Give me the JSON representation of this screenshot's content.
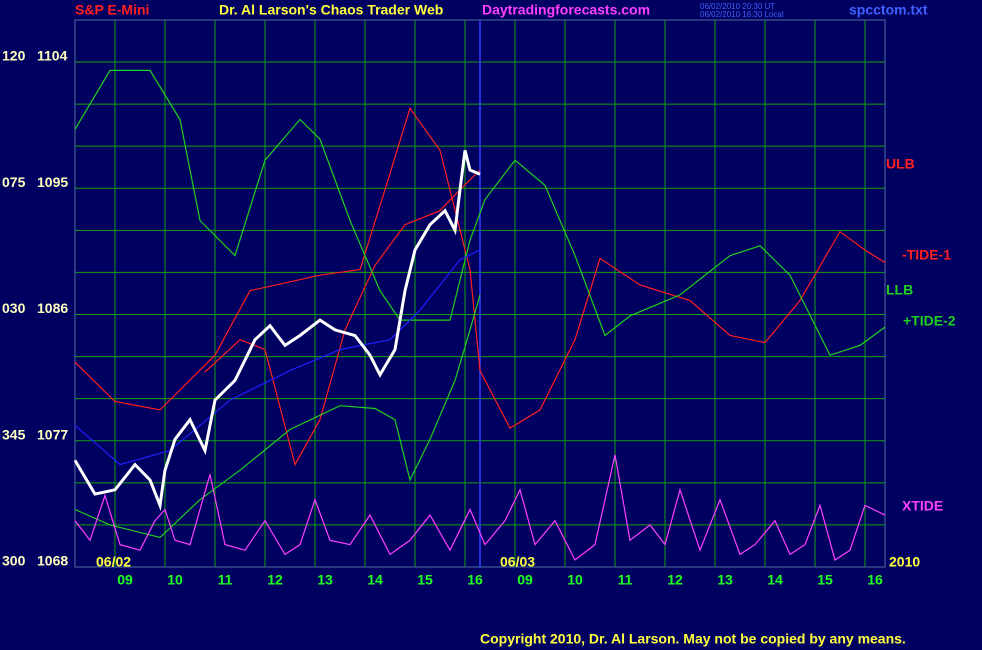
{
  "chart_data": {
    "type": "line",
    "header": {
      "symbol": "S&P E-Mini",
      "title": "Dr. Al Larson's Chaos Trader Web",
      "site": "Daytradingforecasts.com",
      "time_ut": "06/02/2010 20:30 UT",
      "time_local": "06/02/2010 16:30 Local",
      "file": "spcctom.txt"
    },
    "copyright": "Copyright 2010, Dr. Al Larson. May not be copied by any means.",
    "date_labels": [
      "06/02",
      "06/03",
      "2010"
    ],
    "xlim": [
      0,
      16.2
    ],
    "ylim": [
      1068,
      1104
    ],
    "yticks": [
      1068,
      1077,
      1086,
      1095,
      1104
    ],
    "angle_labels": [
      "300",
      "345",
      "030",
      "075",
      "120"
    ],
    "minor_yticks": [
      1071,
      1074,
      1080,
      1083,
      1089,
      1092,
      1098,
      1101
    ],
    "xticks": [
      {
        "value": 1,
        "label": "09"
      },
      {
        "value": 2,
        "label": "10"
      },
      {
        "value": 3,
        "label": "11"
      },
      {
        "value": 4,
        "label": "12"
      },
      {
        "value": 5,
        "label": "13"
      },
      {
        "value": 6,
        "label": "14"
      },
      {
        "value": 7,
        "label": "15"
      },
      {
        "value": 8,
        "label": "16"
      },
      {
        "value": 9,
        "label": "09"
      },
      {
        "value": 10,
        "label": "10"
      },
      {
        "value": 11,
        "label": "11"
      },
      {
        "value": 12,
        "label": "12"
      },
      {
        "value": 13,
        "label": "13"
      },
      {
        "value": 14,
        "label": "14"
      },
      {
        "value": 15,
        "label": "15"
      },
      {
        "value": 16,
        "label": "16"
      }
    ],
    "xgrid": [
      0.8,
      1.8,
      2.8,
      3.8,
      4.8,
      5.8,
      6.8,
      7.8,
      8.8,
      9.8,
      10.8,
      11.8,
      12.8,
      13.8,
      14.8,
      15.8
    ],
    "now_x": 8.1,
    "grid": true,
    "series": [
      {
        "name": "ULB",
        "color": "#ff2020",
        "x": [
          2.6,
          3.3,
          3.8,
          4.4,
          4.9,
          5.4,
          6,
          6.6,
          7.3,
          7.7,
          8.1
        ],
        "values": [
          1081.9,
          1084.2,
          1083.5,
          1075.3,
          1078.5,
          1084.9,
          1089.5,
          1092.4,
          1093.4,
          1094.9,
          1096.3
        ]
      },
      {
        "name": "-TIDE-1",
        "color": "#ff2020",
        "x": [
          0,
          0.8,
          1.7,
          2.8,
          3.5,
          4.9,
          5.7,
          6.2,
          6.7,
          7.3,
          7.9,
          8.1,
          8.7,
          9.3,
          10,
          10.5,
          11.3,
          12.3,
          13.1,
          13.8,
          14.5,
          15.3,
          15.8,
          16.2
        ],
        "values": [
          1082.6,
          1079.8,
          1079.2,
          1083.1,
          1087.7,
          1088.8,
          1089.2,
          1094.9,
          1100.7,
          1097.7,
          1089.2,
          1082.0,
          1077.9,
          1079.2,
          1084.2,
          1090.0,
          1088.1,
          1087.0,
          1084.5,
          1084.0,
          1087.0,
          1091.9,
          1090.6,
          1089.7
        ]
      },
      {
        "name": "LLB",
        "color": "#20d020",
        "x": [
          0,
          0.7,
          1.7,
          2.5,
          3.3,
          4.3,
          5.3,
          6,
          6.4,
          6.7,
          7.1,
          7.6,
          7.9,
          8.1
        ],
        "values": [
          1072.1,
          1071.0,
          1070.1,
          1072.8,
          1074.9,
          1077.8,
          1079.5,
          1079.3,
          1078.5,
          1074.2,
          1077.1,
          1081.3,
          1084.9,
          1087.4
        ]
      },
      {
        "name": "+TIDE-2",
        "color": "#20d020",
        "x": [
          0,
          0.7,
          1.5,
          2.1,
          2.5,
          3.2,
          3.8,
          4.5,
          4.9,
          5.5,
          6.1,
          6.5,
          7.5,
          7.9,
          8.2,
          8.8,
          9.4,
          10,
          10.6,
          11.1,
          12.1,
          13.1,
          13.7,
          14.3,
          15.1,
          15.7,
          16.2
        ],
        "values": [
          1099.2,
          1103.4,
          1103.4,
          1099.9,
          1092.7,
          1090.2,
          1097.0,
          1099.9,
          1098.5,
          1092.7,
          1087.7,
          1085.6,
          1085.6,
          1091.3,
          1094.2,
          1097.0,
          1095.2,
          1090.2,
          1084.5,
          1085.9,
          1087.4,
          1090.2,
          1090.9,
          1088.8,
          1083.1,
          1083.8,
          1085.1
        ]
      },
      {
        "name": "XTIDE",
        "color": "#ff40ff",
        "x": [
          0,
          0.3,
          0.6,
          0.9,
          1.3,
          1.6,
          1.8,
          2,
          2.3,
          2.7,
          3,
          3.4,
          3.8,
          4.2,
          4.5,
          4.8,
          5.1,
          5.5,
          5.9,
          6.3,
          6.7,
          7.1,
          7.5,
          7.9,
          8.2,
          8.6,
          8.9,
          9.2,
          9.6,
          10,
          10.4,
          10.8,
          11.1,
          11.5,
          11.8,
          12.1,
          12.5,
          12.9,
          13.3,
          13.6,
          14,
          14.3,
          14.6,
          14.9,
          15.2,
          15.5,
          15.8,
          16.2
        ],
        "values": [
          1071.3,
          1069.9,
          1073.1,
          1069.6,
          1069.2,
          1071.3,
          1072.1,
          1069.9,
          1069.6,
          1074.6,
          1069.6,
          1069.2,
          1071.3,
          1068.9,
          1069.6,
          1072.8,
          1069.9,
          1069.6,
          1071.7,
          1068.9,
          1069.9,
          1071.7,
          1069.2,
          1072.1,
          1069.6,
          1071.3,
          1073.5,
          1069.6,
          1071.3,
          1068.5,
          1069.6,
          1076.0,
          1069.9,
          1071.0,
          1069.6,
          1073.5,
          1069.2,
          1072.8,
          1068.9,
          1069.6,
          1071.3,
          1068.9,
          1069.6,
          1072.4,
          1068.5,
          1069.2,
          1072.4,
          1071.7
        ]
      }
    ],
    "average": {
      "color": "#2020ff",
      "x": [
        0,
        0.9,
        1.9,
        3.1,
        4.3,
        5.3,
        6.3,
        6.9,
        7.7,
        8.1
      ],
      "values": [
        1078.1,
        1075.3,
        1076.3,
        1079.9,
        1082.0,
        1083.5,
        1084.2,
        1086.3,
        1089.9,
        1090.6
      ]
    },
    "price": {
      "color": "#ffffff",
      "x": [
        0,
        0.4,
        0.8,
        1.2,
        1.5,
        1.7,
        1.8,
        2,
        2.3,
        2.6,
        2.8,
        3.2,
        3.6,
        3.9,
        4.2,
        4.5,
        4.9,
        5.2,
        5.6,
        5.9,
        6.1,
        6.4,
        6.6,
        6.8,
        7.1,
        7.4,
        7.6,
        7.7,
        7.8,
        7.9,
        8.1
      ],
      "values": [
        1075.6,
        1073.2,
        1073.5,
        1075.3,
        1074.2,
        1072.4,
        1074.9,
        1077.1,
        1078.5,
        1076.3,
        1079.9,
        1081.3,
        1084.2,
        1085.2,
        1083.8,
        1084.5,
        1085.6,
        1084.9,
        1084.5,
        1083.1,
        1081.7,
        1083.5,
        1087.7,
        1090.6,
        1092.4,
        1093.4,
        1092.0,
        1094.9,
        1097.7,
        1096.3,
        1096.0
      ]
    }
  }
}
